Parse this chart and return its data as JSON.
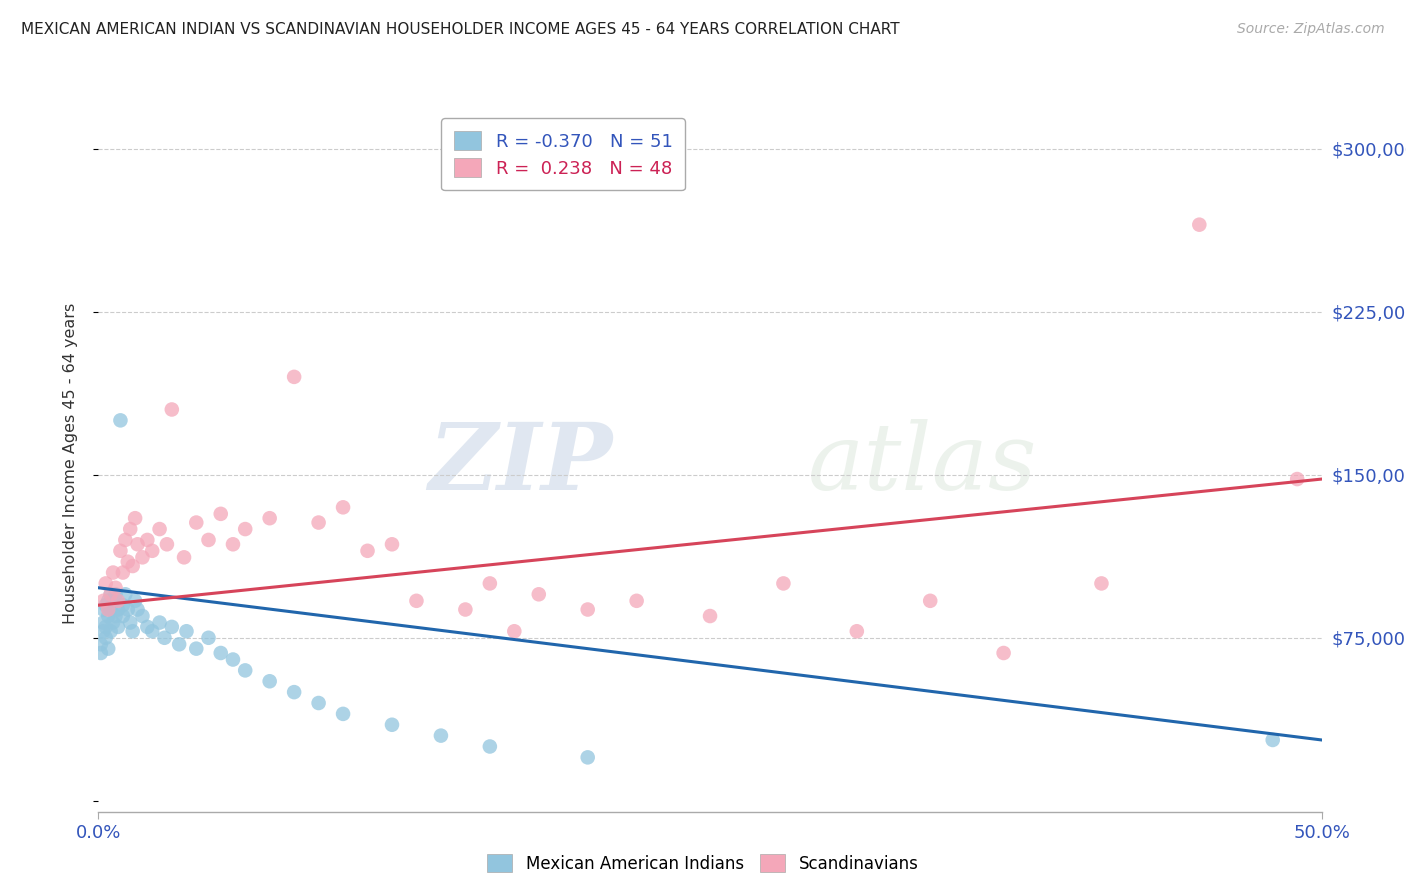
{
  "title": "MEXICAN AMERICAN INDIAN VS SCANDINAVIAN HOUSEHOLDER INCOME AGES 45 - 64 YEARS CORRELATION CHART",
  "source": "Source: ZipAtlas.com",
  "ylabel": "Householder Income Ages 45 - 64 years",
  "yticks": [
    0,
    75000,
    150000,
    225000,
    300000
  ],
  "ytick_labels": [
    "",
    "$75,000",
    "$150,000",
    "$225,000",
    "$300,000"
  ],
  "xlim": [
    0.0,
    0.5
  ],
  "ylim": [
    -5000,
    315000
  ],
  "blue_color": "#92c5de",
  "pink_color": "#f4a7b9",
  "blue_line_color": "#2166ac",
  "pink_line_color": "#d6445a",
  "R_blue": -0.37,
  "N_blue": 51,
  "R_pink": 0.238,
  "N_pink": 48,
  "legend_label_blue": "Mexican American Indians",
  "legend_label_pink": "Scandinavians",
  "watermark_zip": "ZIP",
  "watermark_atlas": "atlas",
  "blue_scatter_x": [
    0.001,
    0.001,
    0.002,
    0.002,
    0.002,
    0.003,
    0.003,
    0.003,
    0.004,
    0.004,
    0.004,
    0.005,
    0.005,
    0.005,
    0.006,
    0.006,
    0.007,
    0.007,
    0.008,
    0.008,
    0.009,
    0.01,
    0.01,
    0.011,
    0.012,
    0.013,
    0.014,
    0.015,
    0.016,
    0.018,
    0.02,
    0.022,
    0.025,
    0.027,
    0.03,
    0.033,
    0.036,
    0.04,
    0.045,
    0.05,
    0.055,
    0.06,
    0.07,
    0.08,
    0.09,
    0.1,
    0.12,
    0.14,
    0.16,
    0.2,
    0.48
  ],
  "blue_scatter_y": [
    72000,
    68000,
    78000,
    82000,
    88000,
    75000,
    80000,
    90000,
    85000,
    92000,
    70000,
    88000,
    95000,
    78000,
    82000,
    92000,
    85000,
    95000,
    80000,
    88000,
    175000,
    90000,
    85000,
    95000,
    88000,
    82000,
    78000,
    92000,
    88000,
    85000,
    80000,
    78000,
    82000,
    75000,
    80000,
    72000,
    78000,
    70000,
    75000,
    68000,
    65000,
    60000,
    55000,
    50000,
    45000,
    40000,
    35000,
    30000,
    25000,
    20000,
    28000
  ],
  "pink_scatter_x": [
    0.002,
    0.003,
    0.004,
    0.005,
    0.006,
    0.007,
    0.008,
    0.009,
    0.01,
    0.011,
    0.012,
    0.013,
    0.014,
    0.015,
    0.016,
    0.018,
    0.02,
    0.022,
    0.025,
    0.028,
    0.03,
    0.035,
    0.04,
    0.045,
    0.05,
    0.055,
    0.06,
    0.07,
    0.08,
    0.09,
    0.1,
    0.11,
    0.12,
    0.13,
    0.15,
    0.16,
    0.17,
    0.18,
    0.2,
    0.22,
    0.25,
    0.28,
    0.31,
    0.34,
    0.37,
    0.41,
    0.45,
    0.49
  ],
  "pink_scatter_y": [
    92000,
    100000,
    88000,
    95000,
    105000,
    98000,
    92000,
    115000,
    105000,
    120000,
    110000,
    125000,
    108000,
    130000,
    118000,
    112000,
    120000,
    115000,
    125000,
    118000,
    180000,
    112000,
    128000,
    120000,
    132000,
    118000,
    125000,
    130000,
    195000,
    128000,
    135000,
    115000,
    118000,
    92000,
    88000,
    100000,
    78000,
    95000,
    88000,
    92000,
    85000,
    100000,
    78000,
    92000,
    68000,
    100000,
    265000,
    148000
  ],
  "blue_line_x0": 0.0,
  "blue_line_y0": 98000,
  "blue_line_x1": 0.5,
  "blue_line_y1": 28000,
  "pink_line_x0": 0.0,
  "pink_line_y0": 90000,
  "pink_line_x1": 0.5,
  "pink_line_y1": 148000
}
